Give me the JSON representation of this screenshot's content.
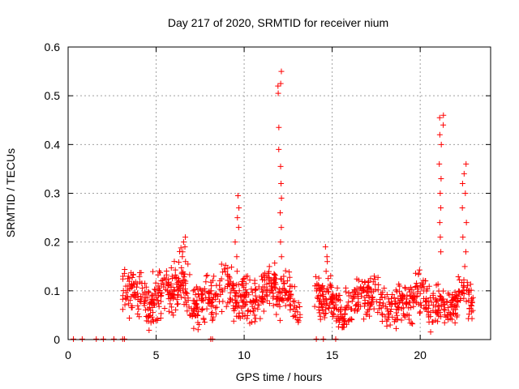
{
  "chart_data": {
    "type": "scatter",
    "title": "Day 217 of 2020, SRMTID for receiver nium",
    "xlabel": "GPS time / hours",
    "ylabel": "SRMTID / TECUs",
    "xlim": [
      0,
      24
    ],
    "ylim": [
      0,
      0.6
    ],
    "x_ticks": [
      0,
      5,
      10,
      15,
      20
    ],
    "y_ticks": [
      0,
      0.1,
      0.2,
      0.3,
      0.4,
      0.5,
      0.6
    ],
    "x_tick_labels": [
      "0",
      "5",
      "10",
      "15",
      "20"
    ],
    "y_tick_labels": [
      "0",
      "0.1",
      "0.2",
      "0.3",
      "0.4",
      "0.5",
      "0.6"
    ],
    "grid": true,
    "marker": "+",
    "series": [
      {
        "name": "SRMTID",
        "color": "#ff0000",
        "segments": [
          {
            "x_start": 3.1,
            "x_end": 13.2,
            "base": 0.09,
            "spread": 0.045,
            "density": 62
          },
          {
            "x_start": 14.0,
            "x_end": 23.0,
            "base": 0.075,
            "spread": 0.04,
            "density": 60
          }
        ],
        "peaks": [
          {
            "x": 6.6,
            "values": [
              0.16,
              0.18,
              0.2,
              0.21,
              0.19,
              0.17
            ]
          },
          {
            "x": 9.6,
            "values": [
              0.14,
              0.17,
              0.2,
              0.23,
              0.25,
              0.27,
              0.295
            ]
          },
          {
            "x": 12.0,
            "values": [
              0.17,
              0.2,
              0.23,
              0.26,
              0.29,
              0.32,
              0.355,
              0.39,
              0.435,
              0.505,
              0.52,
              0.525,
              0.55
            ]
          },
          {
            "x": 14.6,
            "values": [
              0.14,
              0.16,
              0.17,
              0.19
            ]
          },
          {
            "x": 21.2,
            "values": [
              0.18,
              0.21,
              0.24,
              0.27,
              0.3,
              0.33,
              0.36,
              0.4,
              0.42,
              0.44,
              0.455,
              0.46
            ]
          },
          {
            "x": 22.5,
            "values": [
              0.18,
              0.21,
              0.24,
              0.27,
              0.3,
              0.32,
              0.34,
              0.36
            ]
          }
        ],
        "zero_points": [
          0.3,
          0.8,
          1.6,
          2.0,
          2.6,
          3.1,
          3.2,
          8.1,
          8.2,
          14.1,
          14.5,
          15.2
        ]
      }
    ]
  }
}
